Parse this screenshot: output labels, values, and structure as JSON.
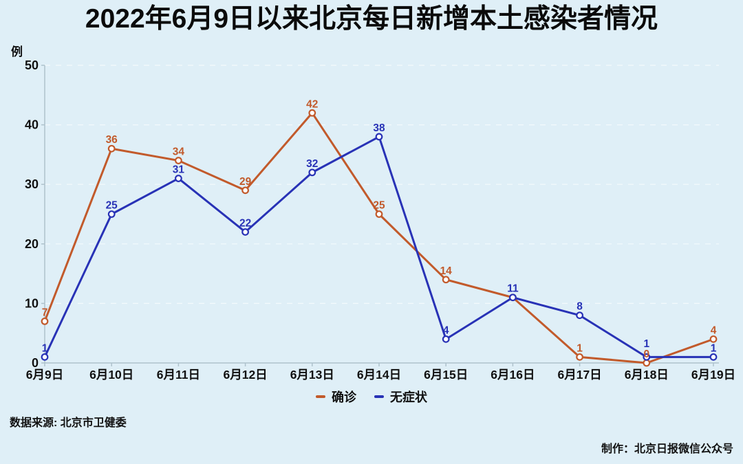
{
  "title": "2022年6月9日以来北京每日新增本土感染者情况",
  "footer": {
    "source": "数据来源: 北京市卫健委",
    "credit": "制作：北京日报微信公众号"
  },
  "colors": {
    "background": "#dfeff7",
    "title_text": "#0b0b0b",
    "axis": "#aec2cc",
    "grid": "#ffffff",
    "tick_label": "#101010",
    "confirmed": "#c25a2b",
    "asymptomatic": "#2832b6",
    "marker_fill": "#ffffff"
  },
  "chart_data": {
    "type": "line",
    "categories": [
      "6月9日",
      "6月10日",
      "6月11日",
      "6月12日",
      "6月13日",
      "6月14日",
      "6月15日",
      "6月16日",
      "6月17日",
      "6月18日",
      "6月19日"
    ],
    "series": [
      {
        "name": "确诊",
        "color": "#c25a2b",
        "values": [
          7,
          36,
          34,
          29,
          42,
          25,
          14,
          11,
          1,
          0,
          4
        ],
        "labels": [
          "7",
          "36",
          "34",
          "29",
          "42",
          "25",
          "14",
          "",
          "1",
          "0",
          "4"
        ]
      },
      {
        "name": "无症状",
        "color": "#2832b6",
        "values": [
          1,
          25,
          31,
          22,
          32,
          38,
          4,
          11,
          8,
          1,
          1
        ],
        "labels": [
          "1",
          "25",
          "31",
          "22",
          "32",
          "38",
          "4",
          "11",
          "8",
          "1",
          "1"
        ]
      }
    ],
    "title": "2022年6月9日以来北京每日新增本土感染者情况",
    "xlabel": "",
    "ylabel": "例",
    "ylim": [
      0,
      50
    ],
    "yticks": [
      0,
      10,
      20,
      30,
      40,
      50
    ],
    "grid": "faint dashed horizontal gridlines",
    "legend_position": "bottom-center",
    "marker": "open-circle"
  }
}
